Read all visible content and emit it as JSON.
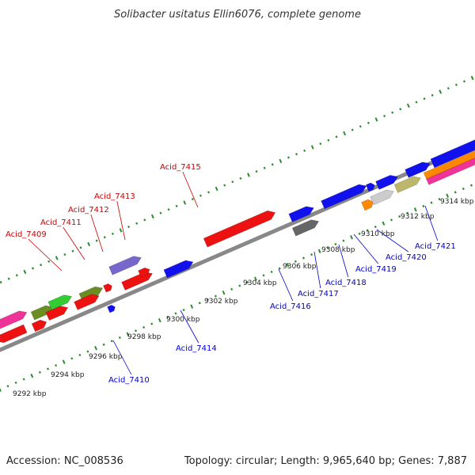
{
  "title": "Solibacter usitatus Ellin6076, complete genome",
  "footer": {
    "accession": "Accession: NC_008536",
    "summary": "Topology: circular; Length: 9,965,640 bp; Genes: 7,887"
  },
  "scale": {
    "unit": "kbp",
    "ticks": [
      "9292 kbp",
      "9294 kbp",
      "9296 kbp",
      "9298 kbp",
      "9300 kbp",
      "9302 kbp",
      "9304 kbp",
      "9306 kbp",
      "9308 kbp",
      "9310 kbp",
      "9312 kbp",
      "9314 kbp"
    ]
  },
  "labels": {
    "top": [
      "Acid_7409",
      "Acid_7411",
      "Acid_7412",
      "Acid_7413",
      "Acid_7415"
    ],
    "bottom": [
      "Acid_7410",
      "Acid_7414",
      "Acid_7416",
      "Acid_7417",
      "Acid_7418",
      "Acid_7419",
      "Acid_7420",
      "Acid_7421"
    ]
  },
  "colors": {
    "top_label": "#cc0000",
    "bottom_label": "#0000cc",
    "backbone": "#888888",
    "tick": "#2e8b2e",
    "red": "#ee1111",
    "blue": "#1111ee",
    "magenta": "#ee3399",
    "green": "#33cc33",
    "olive": "#6b8e23",
    "lavender": "#7766cc",
    "gray": "#666666",
    "orange": "#ff8800",
    "khaki": "#bdb76b",
    "lightgray": "#cccccc"
  }
}
